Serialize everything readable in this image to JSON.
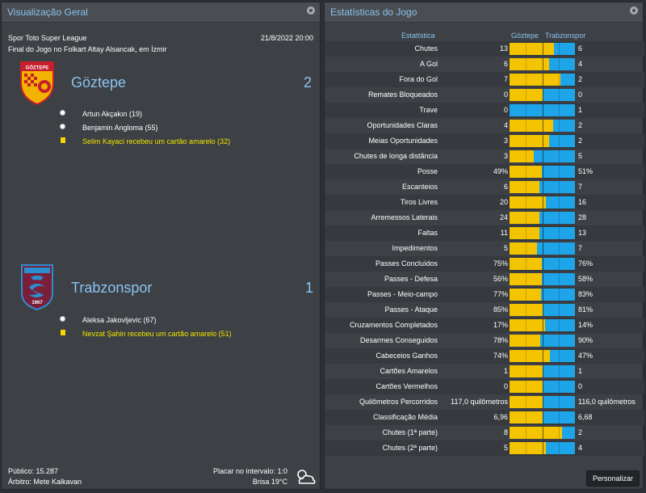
{
  "overview": {
    "title": "Visualização Geral",
    "competition": "Spor Toto Super League",
    "datetime": "21/8/2022 20:00",
    "venue": "Final do Jogo no Folkart Altay Alsancak, em İzmir",
    "home": {
      "name": "Göztepe",
      "score": "2",
      "crest_text": "GÖZTEPE",
      "events": [
        {
          "type": "goal",
          "text": "Artun Akçakın (19)"
        },
        {
          "type": "goal",
          "text": "Benjamin Angloma (55)"
        },
        {
          "type": "yellow",
          "text": "Selim Kayaci recebeu um cartão amarelo (32)"
        }
      ]
    },
    "away": {
      "name": "Trabzonspor",
      "score": "1",
      "crest_text": "1967",
      "events": [
        {
          "type": "goal",
          "text": "Aleksa Jakovljevic (67)"
        },
        {
          "type": "yellow",
          "text": "Nevzat Şahin recebeu um cartão amarelo (51)"
        }
      ]
    },
    "attendance": "Público: 15.287",
    "referee": "Árbitro: Mete Kalkavan",
    "halftime": "Placar no intervalo: 1:0",
    "weather": "Brisa 19°C",
    "weather_icon": "partly-cloudy-icon"
  },
  "stats": {
    "title": "Estatísticas do Jogo",
    "col_stat": "Estatística",
    "col_home": "Göztepe",
    "col_away": "Trabzonspor",
    "button": "Personalizar",
    "colors": {
      "home": "#f5c400",
      "away": "#1ea4e8",
      "accent": "#8bc4f2"
    },
    "rows": [
      {
        "label": "Chutes",
        "home": "13",
        "away": "6",
        "share": 0.684
      },
      {
        "label": "A Gol",
        "home": "6",
        "away": "4",
        "share": 0.6
      },
      {
        "label": "Fora do Gol",
        "home": "7",
        "away": "2",
        "share": 0.778
      },
      {
        "label": "Remates Bloqueados",
        "home": "0",
        "away": "0",
        "share": 0.5
      },
      {
        "label": "Trave",
        "home": "0",
        "away": "1",
        "share": 0.0
      },
      {
        "label": "Oportunidades Claras",
        "home": "4",
        "away": "2",
        "share": 0.667
      },
      {
        "label": "Meias Oportunidades",
        "home": "3",
        "away": "2",
        "share": 0.6
      },
      {
        "label": "Chutes de longa distância",
        "home": "3",
        "away": "5",
        "share": 0.375
      },
      {
        "label": "Posse",
        "home": "49%",
        "away": "51%",
        "share": 0.49
      },
      {
        "label": "Escanteios",
        "home": "6",
        "away": "7",
        "share": 0.462
      },
      {
        "label": "Tiros Livres",
        "home": "20",
        "away": "16",
        "share": 0.556
      },
      {
        "label": "Arremessos Laterais",
        "home": "24",
        "away": "28",
        "share": 0.462
      },
      {
        "label": "Faltas",
        "home": "11",
        "away": "13",
        "share": 0.458
      },
      {
        "label": "Impedimentos",
        "home": "5",
        "away": "7",
        "share": 0.417
      },
      {
        "label": "Passes Concluídos",
        "home": "75%",
        "away": "76%",
        "share": 0.497
      },
      {
        "label": "Passes - Defesa",
        "home": "56%",
        "away": "58%",
        "share": 0.491
      },
      {
        "label": "Passes - Meio-campo",
        "home": "77%",
        "away": "83%",
        "share": 0.481
      },
      {
        "label": "Passes - Ataque",
        "home": "85%",
        "away": "81%",
        "share": 0.512
      },
      {
        "label": "Cruzamentos Completados",
        "home": "17%",
        "away": "14%",
        "share": 0.548
      },
      {
        "label": "Desarmes Conseguidos",
        "home": "78%",
        "away": "90%",
        "share": 0.464
      },
      {
        "label": "Cabeceios Ganhos",
        "home": "74%",
        "away": "47%",
        "share": 0.612
      },
      {
        "label": "Cartões Amarelos",
        "home": "1",
        "away": "1",
        "share": 0.5
      },
      {
        "label": "Cartões Vermelhos",
        "home": "0",
        "away": "0",
        "share": 0.5
      },
      {
        "label": "Quilômetros Percorridos",
        "home": "117,0 quilômetros",
        "away": "116,0 quilômetros",
        "share": 0.502
      },
      {
        "label": "Classificação Média",
        "home": "6,96",
        "away": "6,68",
        "share": 0.51
      },
      {
        "label": "Chutes (1ª parte)",
        "home": "8",
        "away": "2",
        "share": 0.8
      },
      {
        "label": "Chutes (2ª parte)",
        "home": "5",
        "away": "4",
        "share": 0.556
      }
    ]
  }
}
